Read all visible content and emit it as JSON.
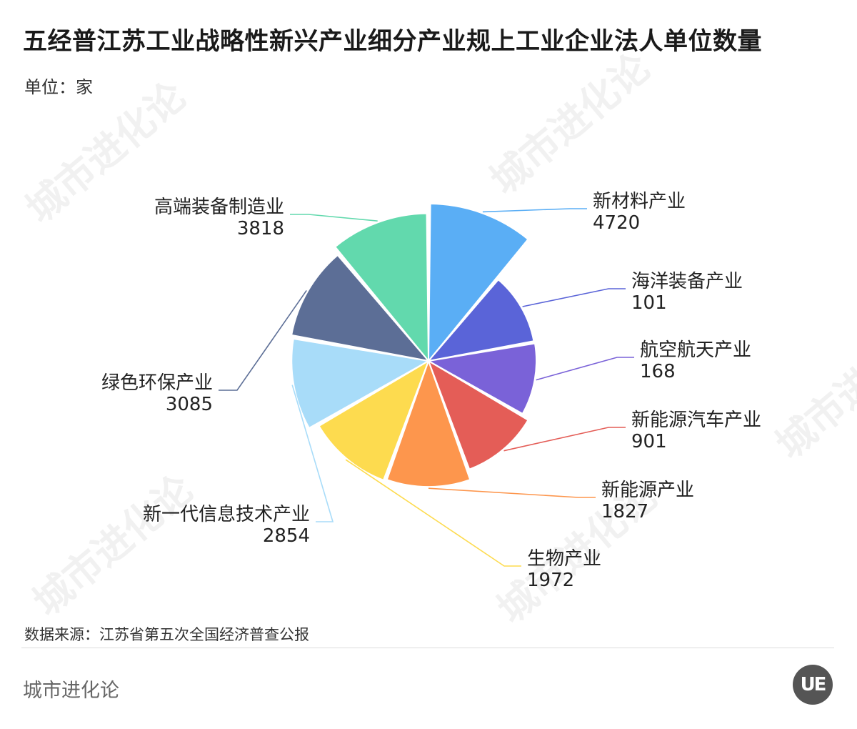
{
  "header": {
    "title": "五经普江苏工业战略性新兴产业细分产业规上工业企业法人单位数量",
    "unit": "单位：家"
  },
  "footer": {
    "source": "数据来源：江苏省第五次全国经济普查公报",
    "brand": "城市进化论",
    "logo_text": "UE"
  },
  "watermark": {
    "text": "城市进化论"
  },
  "chart_data": {
    "type": "pie",
    "variant": "nightingale-radius",
    "title": "五经普江苏工业战略性新兴产业细分产业规上工业企业法人单位数量",
    "unit": "单位：家",
    "slices": [
      {
        "label": "新材料产业",
        "value": 4720,
        "color": "#5aaef5"
      },
      {
        "label": "海洋装备产业",
        "value": 101,
        "color": "#5a64d8"
      },
      {
        "label": "航空航天产业",
        "value": 168,
        "color": "#7a62d8"
      },
      {
        "label": "新能源汽车产业",
        "value": 901,
        "color": "#e45d57"
      },
      {
        "label": "新能源产业",
        "value": 1827,
        "color": "#fd964d"
      },
      {
        "label": "生物产业",
        "value": 1972,
        "color": "#fddb4f"
      },
      {
        "label": "新一代信息技术产业",
        "value": 2854,
        "color": "#a8dcf9"
      },
      {
        "label": "绿色环保产业",
        "value": 3085,
        "color": "#5c6e96"
      },
      {
        "label": "高端装备制造业",
        "value": 3818,
        "color": "#62d9ad"
      }
    ]
  }
}
